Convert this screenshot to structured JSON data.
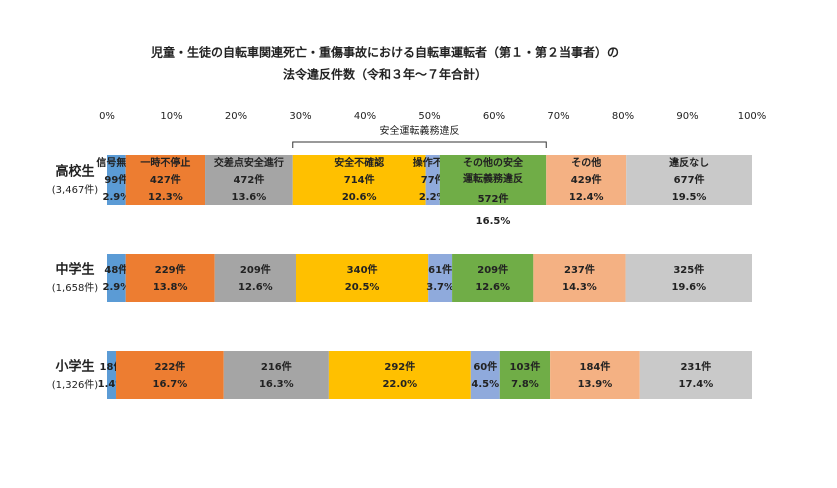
{
  "chart_data": {
    "type": "stacked_bar_100",
    "title": [
      "児童・生徒の自転車関連死亡・重傷事故における自転車運転者（第１・第２当事者）の",
      "法令違反件数（令和３年～７年合計）"
    ],
    "annotation": "安全運転義務違反",
    "categories": [
      "高校生",
      "中学生",
      "小学生"
    ],
    "category_totals": [
      "(3,467件)",
      "(1,658件)",
      "(1,326件)"
    ],
    "xlim": [
      0,
      100
    ],
    "xticks": [
      {
        "value": 0,
        "label": "0%"
      },
      {
        "value": 10,
        "label": "10%"
      },
      {
        "value": 20,
        "label": "20%"
      },
      {
        "value": 30,
        "label": "30%"
      },
      {
        "value": 40,
        "label": "40%"
      },
      {
        "value": 50,
        "label": "50%"
      },
      {
        "value": 60,
        "label": "60%"
      },
      {
        "value": 70,
        "label": "70%"
      },
      {
        "value": 80,
        "label": "80%"
      },
      {
        "value": 90,
        "label": "90%"
      },
      {
        "value": 100,
        "label": "100%"
      }
    ],
    "series": [
      {
        "name": "信号無視",
        "color": "#5b9bd5",
        "values": [
          2.9,
          2.9,
          1.4
        ],
        "value_labels": [
          "2.9%",
          "2.9%",
          "1.4%"
        ],
        "count_labels": [
          "99件",
          "48件",
          "18件"
        ]
      },
      {
        "name": "一時不停止",
        "color": "#ed7d31",
        "values": [
          12.3,
          13.8,
          16.7
        ],
        "value_labels": [
          "12.3%",
          "13.8%",
          "16.7%"
        ],
        "count_labels": [
          "427件",
          "229件",
          "222件"
        ]
      },
      {
        "name": "交差点安全進行",
        "color": "#a5a5a5",
        "values": [
          13.6,
          12.6,
          16.3
        ],
        "value_labels": [
          "13.6%",
          "12.6%",
          "16.3%"
        ],
        "count_labels": [
          "472件",
          "209件",
          "216件"
        ]
      },
      {
        "name": "安全不確認",
        "color": "#ffc000",
        "values": [
          20.6,
          20.5,
          22.0
        ],
        "value_labels": [
          "20.6%",
          "20.5%",
          "22.0%"
        ],
        "count_labels": [
          "714件",
          "340件",
          "292件"
        ]
      },
      {
        "name": "操作不適",
        "color": "#8faadc",
        "values": [
          2.2,
          3.7,
          4.5
        ],
        "value_labels": [
          "2.2%",
          "3.7%",
          "4.5%"
        ],
        "count_labels": [
          "77件",
          "61件",
          "60件"
        ]
      },
      {
        "name": "その他の安全運転義務違反",
        "color": "#70ad47",
        "values": [
          16.5,
          12.6,
          7.8
        ],
        "value_labels": [
          "16.5%",
          "12.6%",
          "7.8%"
        ],
        "count_labels": [
          "572件",
          "209件",
          "103件"
        ]
      },
      {
        "name": "その他",
        "color": "#f4b183",
        "values": [
          12.4,
          14.3,
          13.9
        ],
        "value_labels": [
          "12.4%",
          "14.3%",
          "13.9%"
        ],
        "count_labels": [
          "429件",
          "237件",
          "184件"
        ]
      },
      {
        "name": "違反なし",
        "color": "#c9c9c9",
        "values": [
          19.5,
          19.6,
          17.4
        ],
        "value_labels": [
          "19.5%",
          "19.6%",
          "17.4%"
        ],
        "count_labels": [
          "677件",
          "325件",
          "231件"
        ]
      }
    ]
  }
}
